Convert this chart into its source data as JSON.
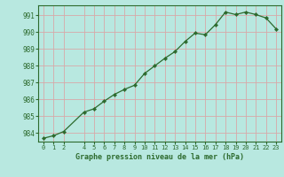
{
  "x": [
    0,
    1,
    2,
    4,
    5,
    6,
    7,
    8,
    9,
    10,
    11,
    12,
    13,
    14,
    15,
    16,
    17,
    18,
    19,
    20,
    21,
    22,
    23
  ],
  "y": [
    983.7,
    983.85,
    984.1,
    985.25,
    985.45,
    985.9,
    986.3,
    986.6,
    986.85,
    987.55,
    988.0,
    988.45,
    988.85,
    989.45,
    989.95,
    989.85,
    990.45,
    991.2,
    991.05,
    991.2,
    991.05,
    990.85,
    990.2
  ],
  "line_color": "#2d6a2d",
  "marker_color": "#2d6a2d",
  "bg_color": "#b8e8e0",
  "grid_color": "#d8a8a8",
  "xlabel": "Graphe pression niveau de la mer (hPa)",
  "xlabel_color": "#2d6a2d",
  "tick_color": "#2d6a2d",
  "ylim": [
    983.5,
    991.6
  ],
  "yticks": [
    984,
    985,
    986,
    987,
    988,
    989,
    990,
    991
  ],
  "xticks": [
    0,
    1,
    2,
    4,
    5,
    6,
    7,
    8,
    9,
    10,
    11,
    12,
    13,
    14,
    15,
    16,
    17,
    18,
    19,
    20,
    21,
    22,
    23
  ],
  "xlim": [
    -0.5,
    23.5
  ],
  "border_color": "#2d6a2d"
}
